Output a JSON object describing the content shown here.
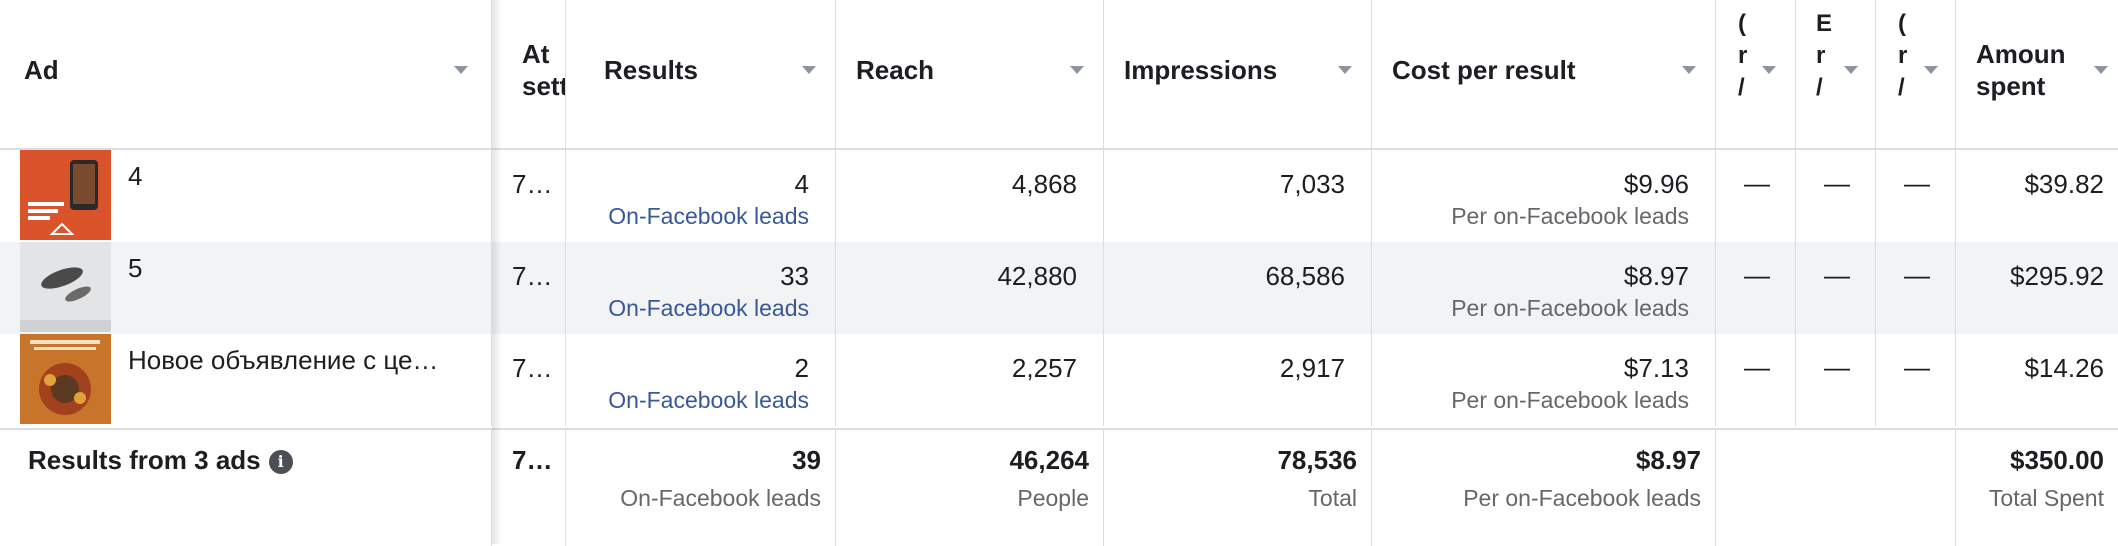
{
  "header": {
    "ad": "Ad",
    "attribution": "At\nsett",
    "results": "Results",
    "reach": "Reach",
    "impressions": "Impressions",
    "cost_per_result": "Cost per result",
    "col_o1": "(\nr\n/",
    "col_o2": "E\nr\n/",
    "col_o3": "(\nr\n/",
    "amount_spent": "Amoun\nspent"
  },
  "rows": [
    {
      "name": "4",
      "attribution": "7…",
      "results": "4",
      "results_type": "On-Facebook leads",
      "reach": "4,868",
      "impressions": "7,033",
      "cost": "$9.96",
      "cost_type": "Per on-Facebook leads",
      "o1": "—",
      "o2": "—",
      "o3": "—",
      "amount": "$39.82"
    },
    {
      "name": "5",
      "attribution": "7…",
      "results": "33",
      "results_type": "On-Facebook leads",
      "reach": "42,880",
      "impressions": "68,586",
      "cost": "$8.97",
      "cost_type": "Per on-Facebook leads",
      "o1": "—",
      "o2": "—",
      "o3": "—",
      "amount": "$295.92"
    },
    {
      "name": "Новое объявление с це…",
      "attribution": "7…",
      "results": "2",
      "results_type": "On-Facebook leads",
      "reach": "2,257",
      "impressions": "2,917",
      "cost": "$7.13",
      "cost_type": "Per on-Facebook leads",
      "o1": "—",
      "o2": "—",
      "o3": "—",
      "amount": "$14.26"
    }
  ],
  "totals": {
    "label": "Results from 3 ads",
    "info_icon": "i",
    "attribution": "7…",
    "results": "39",
    "results_type": "On-Facebook leads",
    "reach": "46,264",
    "reach_type": "People",
    "impressions": "78,536",
    "impressions_type": "Total",
    "cost": "$8.97",
    "cost_type": "Per on-Facebook leads",
    "amount": "$350.00",
    "amount_type": "Total Spent"
  },
  "colors": {
    "link": "#385898",
    "border": "#dadde1",
    "stripe": "#f2f3f5",
    "muted": "#65676b"
  }
}
